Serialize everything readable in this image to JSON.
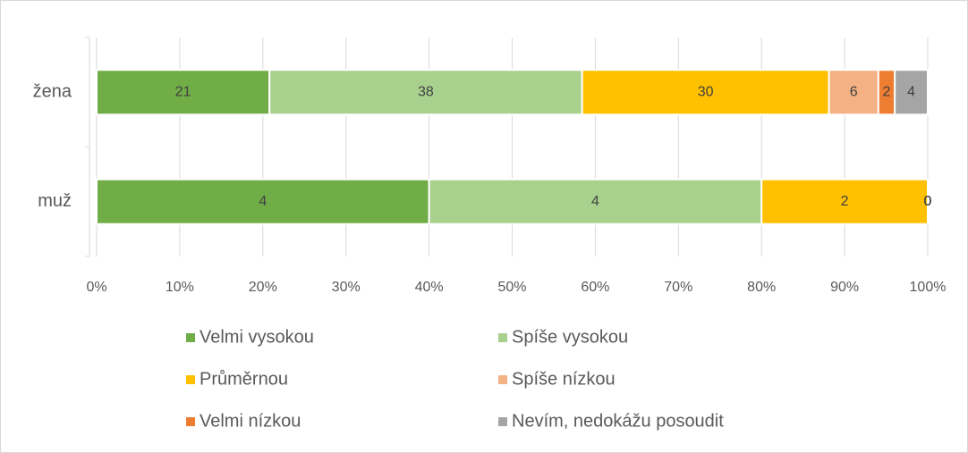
{
  "chart_data": {
    "type": "bar",
    "orientation": "horizontal",
    "stacked": "percent",
    "categories": [
      "žena",
      "muž"
    ],
    "series": [
      {
        "name": "Velmi vysokou",
        "color": "#70ad47",
        "values": [
          21,
          4
        ]
      },
      {
        "name": "Spíše vysokou",
        "color": "#a9d18e",
        "values": [
          38,
          4
        ]
      },
      {
        "name": "Průměrnou",
        "color": "#ffc000",
        "values": [
          30,
          2
        ]
      },
      {
        "name": "Spíše nízkou",
        "color": "#f4b183",
        "values": [
          6,
          0
        ]
      },
      {
        "name": "Velmi nízkou",
        "color": "#ed7d31",
        "values": [
          2,
          0
        ]
      },
      {
        "name": "Nevím, nedokážu posoudit",
        "color": "#a5a5a5",
        "values": [
          4,
          0
        ]
      }
    ],
    "xlim": [
      0,
      100
    ],
    "xticks": [
      {
        "value": 0,
        "label": "0%"
      },
      {
        "value": 10,
        "label": "10%"
      },
      {
        "value": 20,
        "label": "20%"
      },
      {
        "value": 30,
        "label": "30%"
      },
      {
        "value": 40,
        "label": "40%"
      },
      {
        "value": 50,
        "label": "50%"
      },
      {
        "value": 60,
        "label": "60%"
      },
      {
        "value": 70,
        "label": "70%"
      },
      {
        "value": 80,
        "label": "80%"
      },
      {
        "value": 90,
        "label": "90%"
      },
      {
        "value": 100,
        "label": "100%"
      }
    ],
    "grid": true,
    "legend": "bottom"
  }
}
